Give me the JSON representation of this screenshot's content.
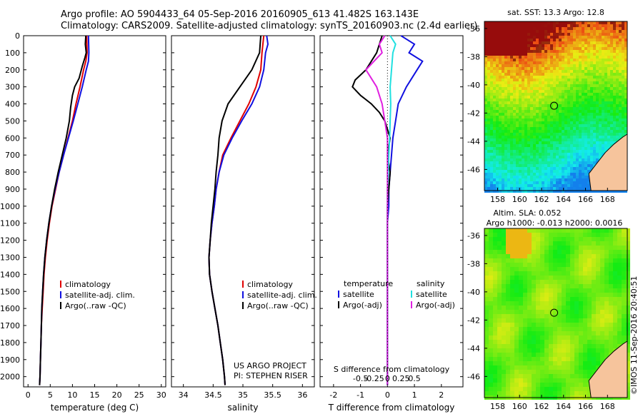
{
  "title_line1": "Argo profile: AO 5904433_64 05-Sep-2016 20160905_613 41.482S 163.143E",
  "title_line2": "Climatology: CARS2009. Satellite-adjusted climatology: synTS_20160903.nc (2.4d earlier)",
  "colors": {
    "climatology": "#e00000",
    "satellite": "#1010e0",
    "argo": "#000000",
    "sal_satellite": "#20e0e0",
    "sal_argo": "#e020e0"
  },
  "chart_data": [
    {
      "type": "line",
      "name": "temperature-profile",
      "xlabel": "temperature (deg C)",
      "ylabel": "",
      "xlim": [
        -1,
        31
      ],
      "ylim": [
        2060,
        0
      ],
      "x_ticks": [
        0,
        5,
        10,
        15,
        20,
        25,
        30
      ],
      "y_ticks": [
        0,
        100,
        200,
        300,
        400,
        500,
        600,
        700,
        800,
        900,
        1000,
        1100,
        1200,
        1300,
        1400,
        1500,
        1600,
        1700,
        1800,
        1900,
        2000
      ],
      "legend": [
        "climatology",
        "satellite-adj. clim.",
        "Argo(..raw -QC)"
      ],
      "series": [
        {
          "name": "climatology",
          "color_key": "climatology",
          "points": [
            [
              13.2,
              0
            ],
            [
              13.3,
              100
            ],
            [
              13.0,
              150
            ],
            [
              12.5,
              200
            ],
            [
              11.7,
              300
            ],
            [
              10.8,
              400
            ],
            [
              10.0,
              500
            ],
            [
              9.0,
              600
            ],
            [
              8.0,
              700
            ],
            [
              7.0,
              800
            ],
            [
              6.2,
              900
            ],
            [
              5.4,
              1000
            ],
            [
              4.8,
              1100
            ],
            [
              4.3,
              1200
            ],
            [
              3.9,
              1300
            ],
            [
              3.6,
              1400
            ],
            [
              3.4,
              1500
            ],
            [
              3.2,
              1600
            ],
            [
              3.0,
              1700
            ],
            [
              2.9,
              1800
            ],
            [
              2.8,
              1900
            ],
            [
              2.7,
              2000
            ],
            [
              2.6,
              2050
            ]
          ]
        },
        {
          "name": "satellite-adj. clim.",
          "color_key": "satellite",
          "points": [
            [
              13.6,
              0
            ],
            [
              13.7,
              100
            ],
            [
              13.6,
              150
            ],
            [
              13.1,
              200
            ],
            [
              12.2,
              300
            ],
            [
              11.2,
              400
            ],
            [
              10.2,
              500
            ],
            [
              9.1,
              600
            ],
            [
              8.0,
              700
            ],
            [
              7.0,
              800
            ],
            [
              6.1,
              900
            ],
            [
              5.3,
              1000
            ],
            [
              4.7,
              1100
            ],
            [
              4.2,
              1200
            ],
            [
              3.8,
              1300
            ],
            [
              3.5,
              1400
            ],
            [
              3.3,
              1500
            ],
            [
              3.1,
              1600
            ],
            [
              3.0,
              1700
            ],
            [
              2.9,
              1800
            ],
            [
              2.8,
              1900
            ],
            [
              2.7,
              2000
            ],
            [
              2.6,
              2050
            ]
          ]
        },
        {
          "name": "Argo(..raw -QC)",
          "color_key": "argo",
          "points": [
            [
              13.0,
              0
            ],
            [
              12.9,
              50
            ],
            [
              13.1,
              100
            ],
            [
              12.8,
              130
            ],
            [
              12.2,
              180
            ],
            [
              11.5,
              250
            ],
            [
              10.5,
              300
            ],
            [
              10.0,
              350
            ],
            [
              9.6,
              420
            ],
            [
              9.3,
              500
            ],
            [
              8.6,
              600
            ],
            [
              7.7,
              700
            ],
            [
              6.8,
              800
            ],
            [
              6.0,
              900
            ],
            [
              5.3,
              1000
            ],
            [
              4.7,
              1100
            ],
            [
              4.2,
              1200
            ],
            [
              3.8,
              1300
            ],
            [
              3.5,
              1400
            ],
            [
              3.3,
              1500
            ],
            [
              3.1,
              1600
            ],
            [
              3.0,
              1700
            ],
            [
              2.9,
              1800
            ],
            [
              2.8,
              1900
            ],
            [
              2.7,
              2000
            ],
            [
              2.6,
              2050
            ]
          ]
        }
      ]
    },
    {
      "type": "line",
      "name": "salinity-profile",
      "xlabel": "salinity",
      "xlim": [
        33.8,
        36.2
      ],
      "ylim": [
        2060,
        0
      ],
      "x_ticks": [
        34,
        34.5,
        35,
        35.5,
        36
      ],
      "legend": [
        "climatology",
        "satellite-adj. clim.",
        "Argo(..raw -QC)"
      ],
      "annotation": [
        "US ARGO PROJECT",
        "PI: STEPHEN RISER"
      ],
      "series": [
        {
          "name": "climatology",
          "color_key": "climatology",
          "points": [
            [
              35.35,
              0
            ],
            [
              35.32,
              100
            ],
            [
              35.3,
              200
            ],
            [
              35.22,
              300
            ],
            [
              35.1,
              400
            ],
            [
              34.95,
              500
            ],
            [
              34.8,
              600
            ],
            [
              34.66,
              700
            ],
            [
              34.6,
              800
            ],
            [
              34.55,
              900
            ],
            [
              34.52,
              1000
            ],
            [
              34.48,
              1100
            ],
            [
              34.45,
              1200
            ],
            [
              34.43,
              1300
            ],
            [
              34.44,
              1400
            ],
            [
              34.48,
              1500
            ],
            [
              34.53,
              1600
            ],
            [
              34.58,
              1700
            ],
            [
              34.62,
              1800
            ],
            [
              34.66,
              1900
            ],
            [
              34.69,
              2000
            ],
            [
              34.7,
              2050
            ]
          ]
        },
        {
          "name": "satellite-adj. clim.",
          "color_key": "satellite",
          "points": [
            [
              35.4,
              0
            ],
            [
              35.42,
              50
            ],
            [
              35.38,
              100
            ],
            [
              35.35,
              200
            ],
            [
              35.28,
              300
            ],
            [
              35.15,
              400
            ],
            [
              34.98,
              500
            ],
            [
              34.82,
              600
            ],
            [
              34.68,
              700
            ],
            [
              34.6,
              800
            ],
            [
              34.55,
              900
            ],
            [
              34.52,
              1000
            ],
            [
              34.48,
              1100
            ],
            [
              34.45,
              1200
            ],
            [
              34.43,
              1300
            ],
            [
              34.44,
              1400
            ],
            [
              34.48,
              1500
            ],
            [
              34.53,
              1600
            ],
            [
              34.58,
              1700
            ],
            [
              34.62,
              1800
            ],
            [
              34.66,
              1900
            ],
            [
              34.69,
              2000
            ],
            [
              34.7,
              2050
            ]
          ]
        },
        {
          "name": "Argo(..raw -QC)",
          "color_key": "argo",
          "points": [
            [
              35.3,
              0
            ],
            [
              35.28,
              100
            ],
            [
              35.15,
              200
            ],
            [
              34.95,
              300
            ],
            [
              34.75,
              400
            ],
            [
              34.65,
              500
            ],
            [
              34.6,
              600
            ],
            [
              34.58,
              700
            ],
            [
              34.55,
              800
            ],
            [
              34.53,
              900
            ],
            [
              34.5,
              1000
            ],
            [
              34.47,
              1100
            ],
            [
              34.45,
              1200
            ],
            [
              34.43,
              1300
            ],
            [
              34.44,
              1400
            ],
            [
              34.48,
              1500
            ],
            [
              34.53,
              1600
            ],
            [
              34.58,
              1700
            ],
            [
              34.62,
              1800
            ],
            [
              34.66,
              1900
            ],
            [
              34.69,
              2000
            ],
            [
              34.7,
              2050
            ]
          ]
        }
      ]
    },
    {
      "type": "line",
      "name": "difference-profile",
      "xlabel": "T difference from climatology",
      "xlabel_top": "S difference from climatology",
      "xlim": [
        -2.5,
        2.8
      ],
      "ylim": [
        2060,
        0
      ],
      "x_ticks": [
        -2,
        -1,
        0,
        1,
        2
      ],
      "s_ticks": [
        {
          "v": -1,
          "t": "-0.5"
        },
        {
          "v": -0.5,
          "t": "-0.25"
        },
        {
          "v": 0,
          "t": "0"
        },
        {
          "v": 0.5,
          "t": "0.25"
        },
        {
          "v": 1,
          "t": "0.5"
        }
      ],
      "legend_title_t": "temperature",
      "legend_title_s": "salinity",
      "legend_t": [
        "satellite",
        "Argo(-adj)"
      ],
      "legend_s": [
        "satellite",
        "Argo(-adj)"
      ],
      "series": [
        {
          "name": "T satellite",
          "color_key": "satellite",
          "points": [
            [
              0.5,
              0
            ],
            [
              0.7,
              20
            ],
            [
              1.0,
              50
            ],
            [
              0.8,
              100
            ],
            [
              1.3,
              150
            ],
            [
              1.1,
              200
            ],
            [
              0.7,
              300
            ],
            [
              0.4,
              400
            ],
            [
              0.3,
              500
            ],
            [
              0.2,
              600
            ],
            [
              0.15,
              700
            ],
            [
              0.1,
              800
            ],
            [
              0.05,
              900
            ],
            [
              0.05,
              1000
            ],
            [
              0.0,
              1100
            ],
            [
              0.0,
              1200
            ],
            [
              0.0,
              1400
            ],
            [
              0.0,
              1600
            ],
            [
              0.0,
              1800
            ],
            [
              0.0,
              2050
            ]
          ]
        },
        {
          "name": "T Argo(-adj)",
          "color_key": "argo",
          "points": [
            [
              -0.2,
              0
            ],
            [
              -0.4,
              100
            ],
            [
              -0.8,
              200
            ],
            [
              -1.2,
              260
            ],
            [
              -1.3,
              300
            ],
            [
              -1.0,
              350
            ],
            [
              -0.6,
              400
            ],
            [
              -0.3,
              450
            ],
            [
              -0.1,
              500
            ],
            [
              0.1,
              600
            ],
            [
              0.0,
              700
            ],
            [
              0.1,
              800
            ],
            [
              0.05,
              900
            ],
            [
              0.0,
              1000
            ],
            [
              0.0,
              1100
            ],
            [
              0.0,
              1200
            ],
            [
              0.0,
              1300
            ],
            [
              0.0,
              1400
            ],
            [
              0.0,
              1600
            ],
            [
              0.0,
              1800
            ],
            [
              0.0,
              2050
            ]
          ]
        },
        {
          "name": "S satellite",
          "color_key": "sal_satellite",
          "points": [
            [
              0.1,
              0
            ],
            [
              0.3,
              50
            ],
            [
              0.2,
              100
            ],
            [
              0.15,
              200
            ],
            [
              0.1,
              300
            ],
            [
              0.12,
              400
            ],
            [
              0.1,
              500
            ],
            [
              0.08,
              600
            ],
            [
              0.05,
              700
            ],
            [
              0.03,
              800
            ],
            [
              0.0,
              900
            ],
            [
              0.0,
              1000
            ],
            [
              0.0,
              1200
            ],
            [
              0.0,
              1400
            ],
            [
              0.0,
              1600
            ],
            [
              0.0,
              1800
            ],
            [
              0.0,
              2050
            ]
          ]
        },
        {
          "name": "S Argo(-adj)",
          "color_key": "sal_argo",
          "points": [
            [
              -0.1,
              0
            ],
            [
              -0.3,
              50
            ],
            [
              -0.2,
              100
            ],
            [
              -0.5,
              150
            ],
            [
              -0.8,
              200
            ],
            [
              -0.6,
              250
            ],
            [
              -0.4,
              300
            ],
            [
              -0.2,
              400
            ],
            [
              -0.1,
              500
            ],
            [
              0.0,
              600
            ],
            [
              0.0,
              800
            ],
            [
              0.0,
              1000
            ],
            [
              0.0,
              1200
            ],
            [
              0.0,
              1400
            ],
            [
              0.0,
              1600
            ],
            [
              0.0,
              1800
            ],
            [
              0.0,
              2050
            ]
          ]
        }
      ]
    },
    {
      "type": "heatmap",
      "name": "sst-map",
      "title": "sat. SST: 13.3 Argo: 12.8",
      "x_ticks": [
        158,
        160,
        162,
        164,
        166,
        168
      ],
      "y_ticks": [
        -36,
        -38,
        -40,
        -42,
        -44,
        -46
      ],
      "xlim": [
        156.8,
        169.8
      ],
      "ylim": [
        -47.5,
        -35.5
      ],
      "argo_position": [
        163.143,
        -41.482
      ]
    },
    {
      "type": "heatmap",
      "name": "sla-map",
      "title": "Altim. SLA: 0.052",
      "subtitle": "Argo h1000: -0.013 h2000: 0.0016",
      "x_ticks": [
        158,
        160,
        162,
        164,
        166,
        168
      ],
      "y_ticks": [
        -36,
        -38,
        -40,
        -42,
        -44,
        -46
      ],
      "xlim": [
        156.8,
        169.8
      ],
      "ylim": [
        -47.5,
        -35.5
      ],
      "argo_position": [
        163.143,
        -41.482
      ]
    }
  ],
  "stamp": "©IMOS 11-Sep-2016 20:40:51"
}
